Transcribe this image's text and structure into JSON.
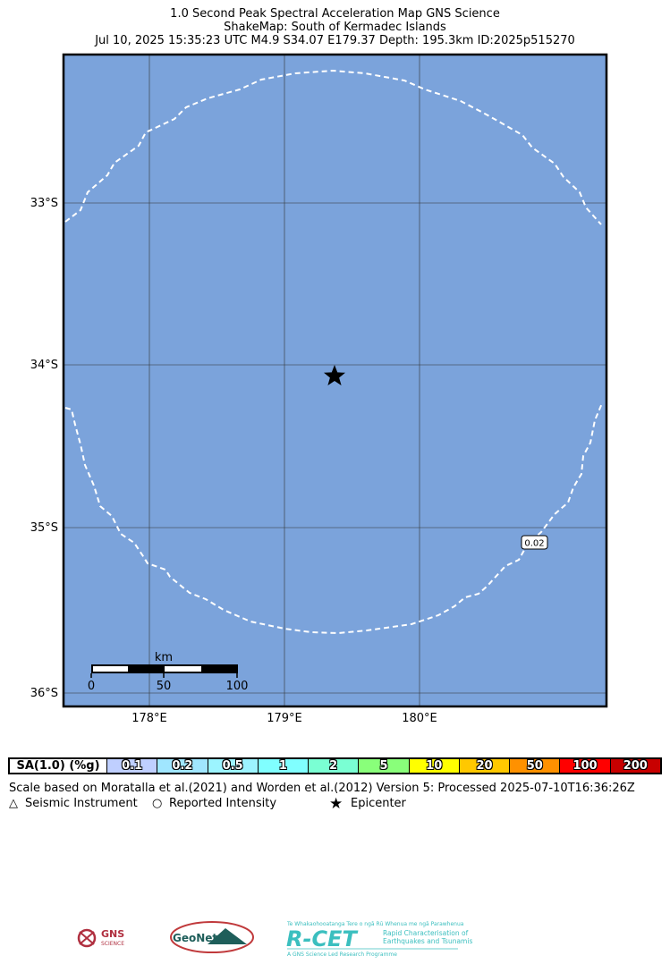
{
  "title": {
    "line1": "1.0 Second Peak Spectral Acceleration Map GNS Science",
    "line2": "ShakeMap: South of Kermadec Islands",
    "line3": "Jul 10, 2025 15:35:23 UTC M4.9 S34.07 E179.37 Depth: 195.3km ID:2025p515270"
  },
  "map": {
    "lat_labels": [
      "33°S",
      "34°S",
      "35°S",
      "36°S"
    ],
    "lon_labels": [
      "178°E",
      "179°E",
      "180°E"
    ],
    "contour_label": "0.02",
    "scale_bar": {
      "unit": "km",
      "ticks": [
        "0",
        "50",
        "100"
      ]
    },
    "colors": {
      "ocean": "#7ba3db",
      "contour": "#ffffff",
      "grid": "#333333"
    },
    "epicenter": {
      "lat": -34.07,
      "lon": 179.37
    }
  },
  "legend": {
    "label": "SA(1.0) (%g)",
    "bins": [
      {
        "value": "0.1",
        "color": "#bfcfff"
      },
      {
        "value": "0.2",
        "color": "#a0e6ff"
      },
      {
        "value": "0.5",
        "color": "#9cf4ff"
      },
      {
        "value": "1",
        "color": "#80ffff"
      },
      {
        "value": "2",
        "color": "#7affd3"
      },
      {
        "value": "5",
        "color": "#89ff7a"
      },
      {
        "value": "10",
        "color": "#ffff00"
      },
      {
        "value": "20",
        "color": "#ffc800"
      },
      {
        "value": "50",
        "color": "#ff9100"
      },
      {
        "value": "100",
        "color": "#ff0000"
      },
      {
        "value": "200",
        "color": "#c80000"
      }
    ]
  },
  "note": "Scale based on Moratalla et al.(2021) and Worden et al.(2012)   Version 5: Processed 2025-07-10T16:36:26Z",
  "symbols": {
    "seismic": "Seismic Instrument",
    "reported": "Reported Intensity",
    "epicenter": "Epicenter"
  },
  "logos": {
    "gns": "GNS",
    "gns_sub": "SCIENCE",
    "geonet": "GeoNet",
    "rcet": "R-CET",
    "rcet_top": "Te Whakaohooatanga Tere o ngā Rū Whenua me ngā Parawhenua",
    "rcet_side1": "Rapid Characterisation of",
    "rcet_side2": "Earthquakes and Tsunamis",
    "rcet_bottom": "A GNS Science Led Research Programme"
  }
}
